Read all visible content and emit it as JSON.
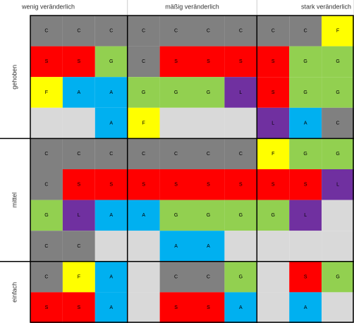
{
  "header": {
    "columns": [
      {
        "label": "wenig veränderlich",
        "span": 3
      },
      {
        "label": "mäßig veränderlich",
        "span": 4
      },
      {
        "label": "stark veränderlich",
        "span": 3
      }
    ]
  },
  "groups": [
    {
      "label": "gehoben",
      "rows": 4
    },
    {
      "label": "mittel",
      "rows": 4
    },
    {
      "label": "einfach",
      "rows": 2
    }
  ],
  "colors": {
    "C": "#808080",
    "S": "#ff0000",
    "G": "#92d050",
    "F": "#ffff00",
    "A": "#00b0f0",
    "L": "#7030a0"
  },
  "empty_color": "#d9d9d9",
  "table": {
    "rows": [
      [
        "C",
        "C",
        "C",
        "C",
        "C",
        "C",
        "C",
        "C",
        "C",
        "F"
      ],
      [
        "S",
        "S",
        "G",
        "C",
        "S",
        "S",
        "S",
        "S",
        "G",
        "G"
      ],
      [
        "F",
        "A",
        "A",
        "G",
        "G",
        "G",
        "L",
        "S",
        "G",
        "G"
      ],
      [
        null,
        null,
        "A",
        "F",
        null,
        null,
        null,
        "L",
        "A",
        "C"
      ],
      [
        "C",
        "C",
        "C",
        "C",
        "C",
        "C",
        "C",
        "F",
        "G",
        "G"
      ],
      [
        "C",
        "S",
        "S",
        "S",
        "S",
        "S",
        "S",
        "S",
        "S",
        "L"
      ],
      [
        "G",
        "L",
        "A",
        "A",
        "G",
        "G",
        "G",
        "G",
        "L",
        null
      ],
      [
        "C",
        "C",
        null,
        null,
        "A",
        "A",
        null,
        null,
        null,
        null
      ],
      [
        "C",
        "F",
        "A",
        null,
        "C",
        "C",
        "G",
        null,
        "S",
        "G"
      ],
      [
        "S",
        "S",
        "A",
        null,
        "S",
        "S",
        "A",
        null,
        "A",
        null
      ]
    ]
  }
}
